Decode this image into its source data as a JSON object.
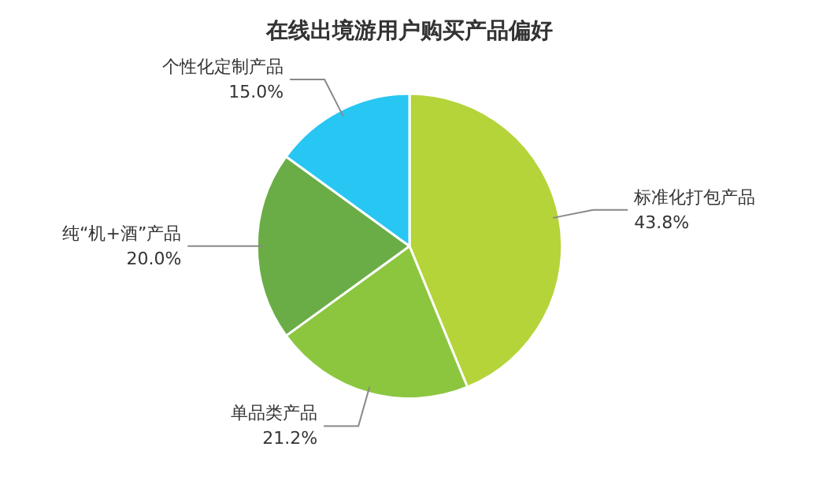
{
  "chart_data": {
    "type": "pie",
    "title": "在线出境游用户购买产品偏好",
    "categories": [
      "标准化打包产品",
      "单品类产品",
      "纯“机+酒”产品",
      "个性化定制产品"
    ],
    "values": [
      43.8,
      21.2,
      20.0,
      15.0
    ],
    "value_labels": [
      "43.8%",
      "21.2%",
      "20.0%",
      "15.0%"
    ],
    "colors": [
      "#b4d43a",
      "#8cc63f",
      "#6aad46",
      "#28c6f2"
    ],
    "legend": false
  }
}
